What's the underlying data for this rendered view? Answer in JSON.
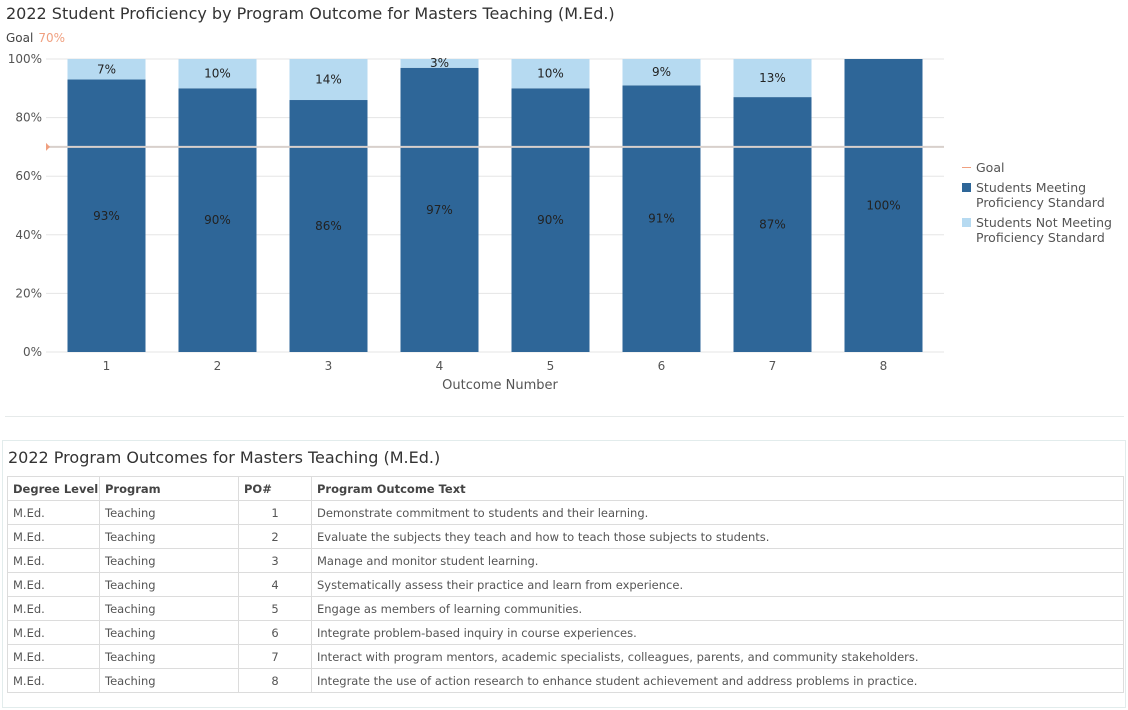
{
  "chart": {
    "title": "2022 Student Proficiency by Program Outcome for Masters Teaching (M.Ed.)",
    "goal_label": "Goal",
    "goal_value_label": "70%"
  },
  "legend": {
    "goal": "Goal",
    "meeting": "Students Meeting Proficiency Standard",
    "not_meeting": "Students Not Meeting Proficiency Standard"
  },
  "colors": {
    "meeting": "#2e6698",
    "not_meeting": "#b6daf1",
    "goal": "#f0a080",
    "grid": "#e5e5e5"
  },
  "chart_data": {
    "type": "bar",
    "stacked": true,
    "categories": [
      "1",
      "2",
      "3",
      "4",
      "5",
      "6",
      "7",
      "8"
    ],
    "series": [
      {
        "name": "Students Meeting Proficiency Standard",
        "values": [
          93,
          90,
          86,
          97,
          90,
          91,
          87,
          100
        ],
        "labels": [
          "93%",
          "90%",
          "86%",
          "97%",
          "90%",
          "91%",
          "87%",
          "100%"
        ]
      },
      {
        "name": "Students Not Meeting Proficiency Standard",
        "values": [
          7,
          10,
          14,
          3,
          10,
          9,
          13,
          0
        ],
        "labels": [
          "7%",
          "10%",
          "14%",
          "3%",
          "10%",
          "9%",
          "13%",
          ""
        ]
      }
    ],
    "goal": 70,
    "xlabel": "Outcome Number",
    "ylabel": "",
    "ylim": [
      0,
      100
    ],
    "yticks": [
      0,
      20,
      40,
      60,
      80,
      100
    ],
    "ytick_labels": [
      "0%",
      "20%",
      "40%",
      "60%",
      "80%",
      "100%"
    ],
    "grid": true,
    "legend_position": "right"
  },
  "table": {
    "title": "2022 Program Outcomes for Masters Teaching (M.Ed.)",
    "headers": [
      "Degree Level",
      "Program",
      "PO#",
      "Program Outcome Text"
    ],
    "rows": [
      [
        "M.Ed.",
        "Teaching",
        "1",
        "Demonstrate commitment to students and their learning."
      ],
      [
        "M.Ed.",
        "Teaching",
        "2",
        "Evaluate the subjects they teach and how to teach those subjects to students."
      ],
      [
        "M.Ed.",
        "Teaching",
        "3",
        "Manage and monitor student learning."
      ],
      [
        "M.Ed.",
        "Teaching",
        "4",
        "Systematically assess their practice and learn from experience."
      ],
      [
        "M.Ed.",
        "Teaching",
        "5",
        "Engage as members of learning communities."
      ],
      [
        "M.Ed.",
        "Teaching",
        "6",
        "Integrate problem-based inquiry in course experiences."
      ],
      [
        "M.Ed.",
        "Teaching",
        "7",
        "Interact with program mentors, academic specialists, colleagues, parents, and community stakeholders."
      ],
      [
        "M.Ed.",
        "Teaching",
        "8",
        "Integrate the use of action research to enhance student achievement and address problems in practice."
      ]
    ]
  }
}
